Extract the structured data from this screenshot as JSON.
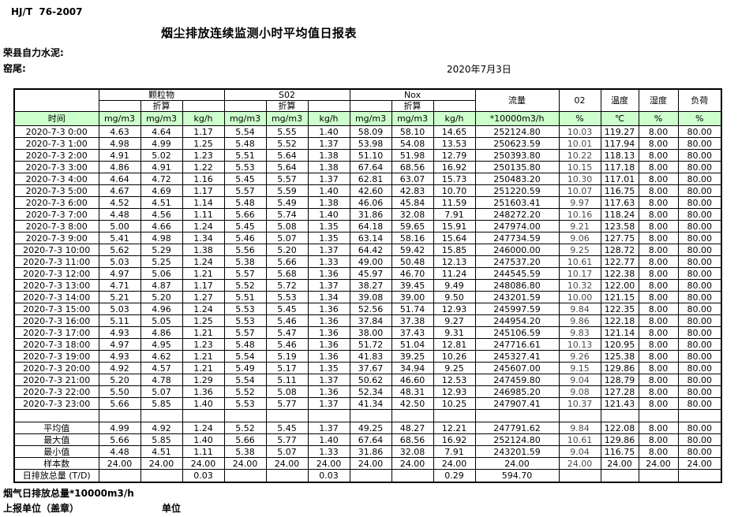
{
  "header": {
    "doc_code": "HJ/T  76-2007",
    "title": "烟尘排放连续监测小时平均值日报表",
    "company": "荣县自力水泥:",
    "location": "窑尾:",
    "date": "2020年7月3日"
  },
  "table": {
    "time_label": "时间",
    "converted_label": "折算",
    "groups": [
      {
        "label": "颗粒物"
      },
      {
        "label": "S02"
      },
      {
        "label": "Nox"
      }
    ],
    "right_headers": [
      "流量",
      "02",
      "温度",
      "湿度",
      "负荷"
    ],
    "units": [
      "mg/m3",
      "mg/m3",
      "kg/h",
      "mg/m3",
      "mg/m3",
      "kg/h",
      "mg/m3",
      "mg/m3",
      "kg/h",
      "*10000m3/h",
      "%",
      "℃",
      "%",
      "%"
    ],
    "rows": [
      {
        "time": "2020-7-3 0:00",
        "values": [
          "4.63",
          "4.64",
          "1.17",
          "5.54",
          "5.55",
          "1.40",
          "58.09",
          "58.10",
          "14.65",
          "252124.80",
          "10.03",
          "119.27",
          "8.00",
          "80.00"
        ]
      },
      {
        "time": "2020-7-3 1:00",
        "values": [
          "4.98",
          "4.99",
          "1.25",
          "5.48",
          "5.52",
          "1.37",
          "53.98",
          "54.08",
          "13.53",
          "250623.59",
          "10.01",
          "117.94",
          "8.00",
          "80.00"
        ]
      },
      {
        "time": "2020-7-3 2:00",
        "values": [
          "4.91",
          "5.02",
          "1.23",
          "5.51",
          "5.64",
          "1.38",
          "51.10",
          "51.98",
          "12.79",
          "250393.80",
          "10.22",
          "118.13",
          "8.00",
          "80.00"
        ]
      },
      {
        "time": "2020-7-3 3:00",
        "values": [
          "4.86",
          "4.91",
          "1.22",
          "5.53",
          "5.64",
          "1.38",
          "67.64",
          "68.56",
          "16.92",
          "250135.80",
          "10.15",
          "117.18",
          "8.00",
          "80.00"
        ]
      },
      {
        "time": "2020-7-3 4:00",
        "values": [
          "4.64",
          "4.72",
          "1.16",
          "5.45",
          "5.57",
          "1.37",
          "62.81",
          "63.07",
          "15.73",
          "250483.20",
          "10.30",
          "117.01",
          "8.00",
          "80.00"
        ]
      },
      {
        "time": "2020-7-3 5:00",
        "values": [
          "4.67",
          "4.69",
          "1.17",
          "5.57",
          "5.59",
          "1.40",
          "42.60",
          "42.83",
          "10.70",
          "251220.59",
          "10.07",
          "116.75",
          "8.00",
          "80.00"
        ]
      },
      {
        "time": "2020-7-3 6:00",
        "values": [
          "4.52",
          "4.51",
          "1.14",
          "5.48",
          "5.49",
          "1.38",
          "46.06",
          "45.84",
          "11.59",
          "251603.41",
          "9.97",
          "117.63",
          "8.00",
          "80.00"
        ]
      },
      {
        "time": "2020-7-3 7:00",
        "values": [
          "4.48",
          "4.56",
          "1.11",
          "5.66",
          "5.74",
          "1.40",
          "31.86",
          "32.08",
          "7.91",
          "248272.20",
          "10.16",
          "118.24",
          "8.00",
          "80.00"
        ]
      },
      {
        "time": "2020-7-3 8:00",
        "values": [
          "5.00",
          "4.66",
          "1.24",
          "5.45",
          "5.08",
          "1.35",
          "64.18",
          "59.65",
          "15.91",
          "247974.00",
          "9.21",
          "123.58",
          "8.00",
          "80.00"
        ]
      },
      {
        "time": "2020-7-3 9:00",
        "values": [
          "5.41",
          "4.98",
          "1.34",
          "5.46",
          "5.07",
          "1.35",
          "63.14",
          "58.16",
          "15.64",
          "247734.59",
          "9.06",
          "127.75",
          "8.00",
          "80.00"
        ]
      },
      {
        "time": "2020-7-3 10:00",
        "values": [
          "5.62",
          "5.29",
          "1.38",
          "5.56",
          "5.20",
          "1.37",
          "64.42",
          "59.42",
          "15.85",
          "246000.00",
          "9.25",
          "128.72",
          "8.00",
          "80.00"
        ]
      },
      {
        "time": "2020-7-3 11:00",
        "values": [
          "5.03",
          "5.25",
          "1.24",
          "5.38",
          "5.66",
          "1.33",
          "49.00",
          "50.48",
          "12.13",
          "247537.20",
          "10.61",
          "122.77",
          "8.00",
          "80.00"
        ]
      },
      {
        "time": "2020-7-3 12:00",
        "values": [
          "4.97",
          "5.06",
          "1.21",
          "5.57",
          "5.68",
          "1.36",
          "45.97",
          "46.70",
          "11.24",
          "244545.59",
          "10.17",
          "122.38",
          "8.00",
          "80.00"
        ]
      },
      {
        "time": "2020-7-3 13:00",
        "values": [
          "4.71",
          "4.87",
          "1.17",
          "5.52",
          "5.72",
          "1.37",
          "38.27",
          "39.45",
          "9.49",
          "248086.80",
          "10.32",
          "122.00",
          "8.00",
          "80.00"
        ]
      },
      {
        "time": "2020-7-3 14:00",
        "values": [
          "5.21",
          "5.20",
          "1.27",
          "5.51",
          "5.53",
          "1.34",
          "39.08",
          "39.00",
          "9.50",
          "243201.59",
          "10.00",
          "121.15",
          "8.00",
          "80.00"
        ]
      },
      {
        "time": "2020-7-3 15:00",
        "values": [
          "5.03",
          "4.96",
          "1.24",
          "5.53",
          "5.45",
          "1.36",
          "52.56",
          "51.74",
          "12.93",
          "245997.59",
          "9.84",
          "122.35",
          "8.00",
          "80.00"
        ]
      },
      {
        "time": "2020-7-3 16:00",
        "values": [
          "5.11",
          "5.05",
          "1.25",
          "5.53",
          "5.46",
          "1.36",
          "37.84",
          "37.38",
          "9.27",
          "244954.20",
          "9.86",
          "122.18",
          "8.00",
          "80.00"
        ]
      },
      {
        "time": "2020-7-3 17:00",
        "values": [
          "4.93",
          "4.86",
          "1.21",
          "5.57",
          "5.47",
          "1.36",
          "38.00",
          "37.43",
          "9.31",
          "245106.59",
          "9.83",
          "121.14",
          "8.00",
          "80.00"
        ]
      },
      {
        "time": "2020-7-3 18:00",
        "values": [
          "4.97",
          "4.95",
          "1.23",
          "5.48",
          "5.46",
          "1.36",
          "51.72",
          "51.04",
          "12.81",
          "247716.61",
          "10.13",
          "120.95",
          "8.00",
          "80.00"
        ]
      },
      {
        "time": "2020-7-3 19:00",
        "values": [
          "4.93",
          "4.62",
          "1.21",
          "5.54",
          "5.19",
          "1.36",
          "41.83",
          "39.25",
          "10.26",
          "245327.41",
          "9.26",
          "125.38",
          "8.00",
          "80.00"
        ]
      },
      {
        "time": "2020-7-3 20:00",
        "values": [
          "4.92",
          "4.57",
          "1.21",
          "5.49",
          "5.17",
          "1.35",
          "37.67",
          "34.94",
          "9.25",
          "245607.00",
          "9.15",
          "129.86",
          "8.00",
          "80.00"
        ]
      },
      {
        "time": "2020-7-3 21:00",
        "values": [
          "5.20",
          "4.78",
          "1.29",
          "5.54",
          "5.11",
          "1.37",
          "50.62",
          "46.60",
          "12.53",
          "247459.80",
          "9.04",
          "128.79",
          "8.00",
          "80.00"
        ]
      },
      {
        "time": "2020-7-3 22:00",
        "values": [
          "5.50",
          "5.07",
          "1.36",
          "5.52",
          "5.08",
          "1.36",
          "52.34",
          "48.31",
          "12.93",
          "246985.20",
          "9.08",
          "127.28",
          "8.00",
          "80.00"
        ]
      },
      {
        "time": "2020-7-3 23:00",
        "values": [
          "5.66",
          "5.85",
          "1.40",
          "5.53",
          "5.77",
          "1.37",
          "41.34",
          "42.50",
          "10.25",
          "247907.41",
          "10.37",
          "121.43",
          "8.00",
          "80.00"
        ]
      }
    ],
    "summary": [
      {
        "label": "平均值",
        "values": [
          "4.99",
          "4.92",
          "1.24",
          "5.52",
          "5.45",
          "1.37",
          "49.25",
          "48.27",
          "12.21",
          "247791.62",
          "9.84",
          "122.08",
          "8.00",
          "80.00"
        ]
      },
      {
        "label": "最大值",
        "values": [
          "5.66",
          "5.85",
          "1.40",
          "5.66",
          "5.77",
          "1.40",
          "67.64",
          "68.56",
          "16.92",
          "252124.80",
          "10.61",
          "129.86",
          "8.00",
          "80.00"
        ]
      },
      {
        "label": "最小值",
        "values": [
          "4.48",
          "4.51",
          "1.11",
          "5.38",
          "5.07",
          "1.33",
          "31.86",
          "32.08",
          "7.91",
          "243201.59",
          "9.04",
          "116.75",
          "8.00",
          "80.00"
        ]
      },
      {
        "label": "样本数",
        "values": [
          "24.00",
          "24.00",
          "24.00",
          "24.00",
          "24.00",
          "24.00",
          "24.00",
          "24.00",
          "24.00",
          "24.00",
          "24.00",
          "24.00",
          "24.00",
          "24.00"
        ]
      },
      {
        "label": "日排放总量 (T/D)",
        "label_align": "left",
        "align": "right",
        "values": [
          "",
          "",
          "0.03",
          "",
          "",
          "0.03",
          "",
          "",
          "0.29",
          "594.70",
          "",
          "",
          "",
          ""
        ]
      }
    ]
  },
  "footer": {
    "note": "烟气日排放总量*10000m3/h",
    "report_unit": "上报单位（盖章）",
    "unit_label": "单位"
  },
  "colors": {
    "units_row_green": "#ccffcc",
    "border": "#000000"
  }
}
